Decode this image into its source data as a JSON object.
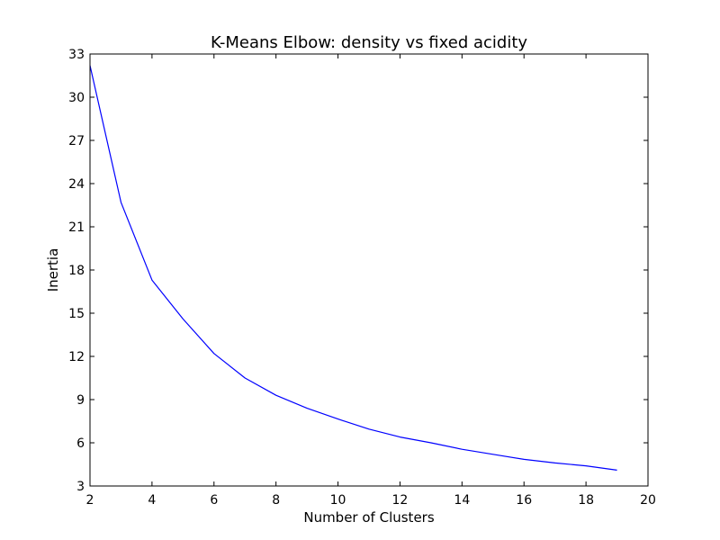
{
  "chart_data": {
    "type": "line",
    "title": "K-Means Elbow: density vs fixed acidity",
    "xlabel": "Number of Clusters",
    "ylabel": "Inertia",
    "xlim": [
      2,
      20
    ],
    "ylim": [
      3,
      33
    ],
    "xticks": [
      2,
      4,
      6,
      8,
      10,
      12,
      14,
      16,
      18,
      20
    ],
    "yticks": [
      3,
      6,
      9,
      12,
      15,
      18,
      21,
      24,
      27,
      30,
      33
    ],
    "grid": false,
    "series": [
      {
        "color": "#0000ff",
        "x": [
          2,
          3,
          4,
          5,
          6,
          7,
          8,
          9,
          10,
          11,
          12,
          13,
          14,
          15,
          16,
          17,
          18,
          19
        ],
        "y": [
          32.2,
          22.7,
          17.3,
          14.6,
          12.2,
          10.5,
          9.3,
          8.4,
          7.65,
          6.95,
          6.4,
          6.0,
          5.55,
          5.2,
          4.85,
          4.6,
          4.4,
          4.1
        ]
      }
    ]
  }
}
